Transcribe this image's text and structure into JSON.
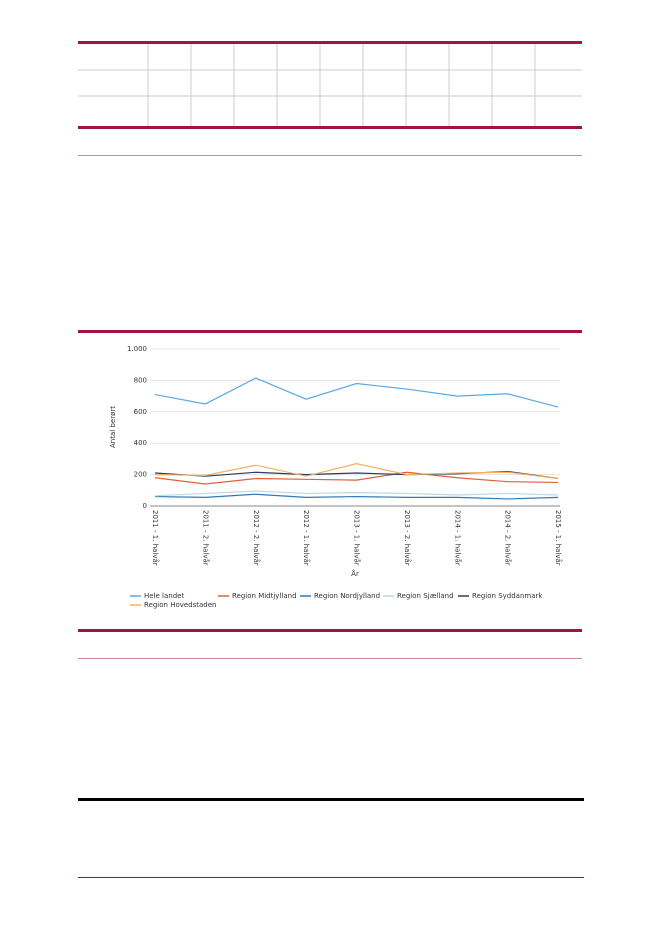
{
  "chart_data": {
    "type": "line",
    "categories": [
      "2011 - 1. halvår",
      "2011 - 2. halvår",
      "2012 - 2. halvår",
      "2012 - 1. halvår",
      "2013 - 1. halvår",
      "2013 - 2. halvår",
      "2014 - 1. halvår",
      "2014 - 2. halvår",
      "2015 - 1. halvår"
    ],
    "series": [
      {
        "name": "Hele landet",
        "color": "#5aa9e6",
        "values": [
          710,
          650,
          815,
          680,
          780,
          745,
          700,
          715,
          630
        ]
      },
      {
        "name": "Region Midtjylland",
        "color": "#e0603a",
        "values": [
          180,
          140,
          175,
          170,
          165,
          215,
          180,
          155,
          150
        ]
      },
      {
        "name": "Region Nordjylland",
        "color": "#2f7ab8",
        "values": [
          60,
          55,
          75,
          55,
          60,
          55,
          55,
          45,
          55
        ]
      },
      {
        "name": "Region Sjælland",
        "color": "#b9d9ec",
        "values": [
          65,
          80,
          95,
          80,
          85,
          80,
          70,
          80,
          70
        ]
      },
      {
        "name": "Region Syddanmark",
        "color": "#2a3d66",
        "values": [
          210,
          190,
          215,
          200,
          210,
          200,
          205,
          220,
          175
        ]
      },
      {
        "name": "Region Hovedstaden",
        "color": "#f5b060",
        "values": [
          200,
          195,
          260,
          190,
          270,
          200,
          210,
          215,
          175
        ]
      }
    ],
    "xlabel": "År",
    "ylabel": "Antal berørt",
    "ylim": [
      0,
      1000
    ],
    "yticks": [
      0,
      200,
      400,
      600,
      800,
      {
        "value": 1000,
        "label": "1.000"
      }
    ],
    "grid": true,
    "legend": "bottom"
  }
}
